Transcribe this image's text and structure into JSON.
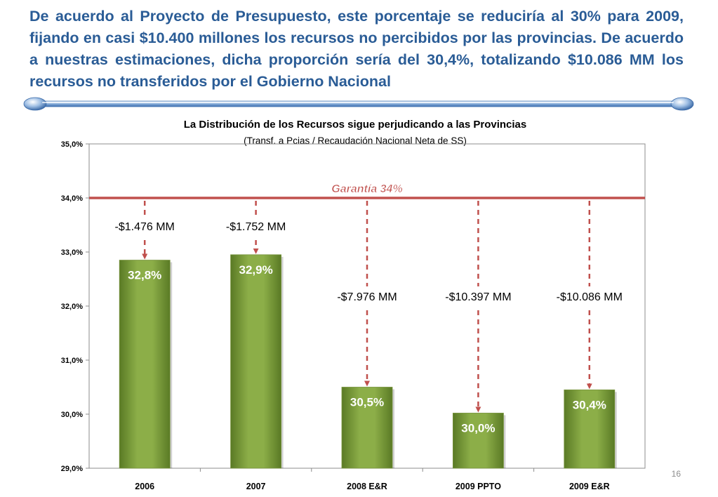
{
  "slide": {
    "headline": "De acuerdo al Proyecto de Presupuesto, este porcentaje se reduciría al 30% para 2009, fijando en casi $10.400 millones los recursos no percibidos por las provincias. De acuerdo a nuestras estimaciones, dicha proporción sería del 30,4%, totalizando $10.086 MM los recursos no transferidos por el Gobierno Nacional",
    "page_number": "16"
  },
  "colors": {
    "headline_text": "#2a5c96",
    "bar_fill": "#77933c",
    "guarantee_line": "#c0504d",
    "annotation_arrow": "#c0504d"
  },
  "chart_data": {
    "type": "bar",
    "title": "La Distribución de los Recursos sigue perjudicando a las Provincias",
    "subtitle": "(Transf. a Pcias / Recaudación Nacional Neta de SS)",
    "categories": [
      "2006",
      "2007",
      "2008 E&R",
      "2009 PPTO",
      "2009 E&R"
    ],
    "values": [
      32.85,
      32.95,
      30.5,
      30.02,
      30.45
    ],
    "value_labels": [
      "32,8%",
      "32,9%",
      "30,5%",
      "30,0%",
      "30,4%"
    ],
    "gap_labels": [
      "-$1.476 MM",
      "-$1.752 MM",
      "-$7.976 MM",
      "-$10.397 MM",
      "-$10.086 MM"
    ],
    "y_ticks": [
      29,
      30,
      31,
      32,
      33,
      34,
      35
    ],
    "y_tick_labels": [
      "29,0%",
      "30,0%",
      "31,0%",
      "32,0%",
      "33,0%",
      "34,0%",
      "35,0%"
    ],
    "ylim": [
      29,
      35
    ],
    "reference_line": {
      "value": 34,
      "label": "Garantía 34%"
    },
    "grid": false,
    "legend": "none"
  }
}
